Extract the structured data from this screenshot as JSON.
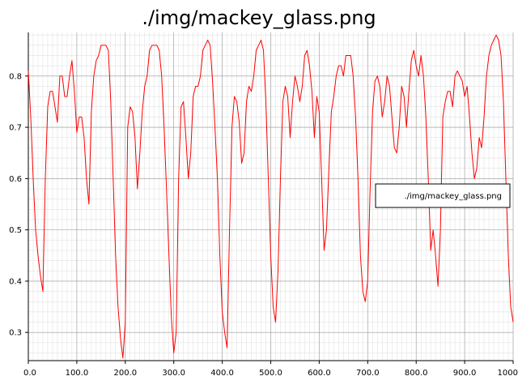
{
  "chart_data": {
    "type": "line",
    "title": "./img/mackey_glass.png",
    "xlabel": "",
    "ylabel": "",
    "xlim": [
      0,
      1000
    ],
    "ylim": [
      0.245,
      0.885
    ],
    "x_ticks": [
      0,
      100,
      200,
      300,
      400,
      500,
      600,
      700,
      800,
      900,
      1000
    ],
    "x_tick_labels": [
      "0.0",
      "100.0",
      "200.0",
      "300.0",
      "400.0",
      "500.0",
      "600.0",
      "700.0",
      "800.0",
      "900.0",
      "1000"
    ],
    "y_ticks": [
      0.3,
      0.4,
      0.5,
      0.6,
      0.7,
      0.8
    ],
    "y_tick_labels": [
      "0.3",
      "0.4",
      "0.5",
      "0.6",
      "0.7",
      "0.8"
    ],
    "grid": true,
    "legend_position": "center-right",
    "series": [
      {
        "name": "./img/mackey_glass.png",
        "color": "#ff0000",
        "points": [
          [
            0,
            0.81
          ],
          [
            5,
            0.72
          ],
          [
            10,
            0.6
          ],
          [
            15,
            0.5
          ],
          [
            20,
            0.45
          ],
          [
            25,
            0.41
          ],
          [
            30,
            0.38
          ],
          [
            35,
            0.6
          ],
          [
            40,
            0.74
          ],
          [
            45,
            0.77
          ],
          [
            50,
            0.77
          ],
          [
            55,
            0.74
          ],
          [
            60,
            0.71
          ],
          [
            65,
            0.8
          ],
          [
            70,
            0.8
          ],
          [
            75,
            0.76
          ],
          [
            80,
            0.76
          ],
          [
            85,
            0.8
          ],
          [
            90,
            0.83
          ],
          [
            95,
            0.77
          ],
          [
            100,
            0.69
          ],
          [
            105,
            0.72
          ],
          [
            110,
            0.72
          ],
          [
            115,
            0.68
          ],
          [
            120,
            0.6
          ],
          [
            125,
            0.55
          ],
          [
            130,
            0.73
          ],
          [
            135,
            0.8
          ],
          [
            140,
            0.83
          ],
          [
            145,
            0.84
          ],
          [
            150,
            0.86
          ],
          [
            155,
            0.86
          ],
          [
            160,
            0.86
          ],
          [
            165,
            0.85
          ],
          [
            170,
            0.75
          ],
          [
            175,
            0.6
          ],
          [
            180,
            0.45
          ],
          [
            185,
            0.35
          ],
          [
            190,
            0.29
          ],
          [
            195,
            0.25
          ],
          [
            200,
            0.32
          ],
          [
            205,
            0.7
          ],
          [
            210,
            0.74
          ],
          [
            215,
            0.73
          ],
          [
            220,
            0.68
          ],
          [
            225,
            0.58
          ],
          [
            230,
            0.65
          ],
          [
            235,
            0.73
          ],
          [
            240,
            0.78
          ],
          [
            245,
            0.8
          ],
          [
            250,
            0.85
          ],
          [
            255,
            0.86
          ],
          [
            260,
            0.86
          ],
          [
            265,
            0.86
          ],
          [
            270,
            0.85
          ],
          [
            275,
            0.8
          ],
          [
            280,
            0.7
          ],
          [
            285,
            0.58
          ],
          [
            290,
            0.45
          ],
          [
            295,
            0.33
          ],
          [
            300,
            0.26
          ],
          [
            305,
            0.3
          ],
          [
            310,
            0.6
          ],
          [
            315,
            0.74
          ],
          [
            320,
            0.75
          ],
          [
            325,
            0.68
          ],
          [
            330,
            0.6
          ],
          [
            335,
            0.65
          ],
          [
            340,
            0.76
          ],
          [
            345,
            0.78
          ],
          [
            350,
            0.78
          ],
          [
            355,
            0.8
          ],
          [
            360,
            0.85
          ],
          [
            365,
            0.86
          ],
          [
            370,
            0.87
          ],
          [
            375,
            0.86
          ],
          [
            380,
            0.79
          ],
          [
            385,
            0.7
          ],
          [
            390,
            0.6
          ],
          [
            395,
            0.45
          ],
          [
            400,
            0.34
          ],
          [
            405,
            0.3
          ],
          [
            410,
            0.27
          ],
          [
            415,
            0.5
          ],
          [
            420,
            0.7
          ],
          [
            425,
            0.76
          ],
          [
            430,
            0.75
          ],
          [
            435,
            0.71
          ],
          [
            440,
            0.63
          ],
          [
            445,
            0.65
          ],
          [
            450,
            0.75
          ],
          [
            455,
            0.78
          ],
          [
            460,
            0.77
          ],
          [
            465,
            0.8
          ],
          [
            470,
            0.85
          ],
          [
            475,
            0.86
          ],
          [
            480,
            0.87
          ],
          [
            485,
            0.85
          ],
          [
            490,
            0.75
          ],
          [
            495,
            0.6
          ],
          [
            500,
            0.45
          ],
          [
            505,
            0.35
          ],
          [
            510,
            0.32
          ],
          [
            515,
            0.42
          ],
          [
            520,
            0.6
          ],
          [
            525,
            0.75
          ],
          [
            530,
            0.78
          ],
          [
            535,
            0.76
          ],
          [
            540,
            0.68
          ],
          [
            545,
            0.75
          ],
          [
            550,
            0.8
          ],
          [
            555,
            0.78
          ],
          [
            560,
            0.75
          ],
          [
            565,
            0.78
          ],
          [
            570,
            0.84
          ],
          [
            575,
            0.85
          ],
          [
            580,
            0.82
          ],
          [
            585,
            0.77
          ],
          [
            590,
            0.68
          ],
          [
            595,
            0.76
          ],
          [
            600,
            0.73
          ],
          [
            605,
            0.6
          ],
          [
            610,
            0.46
          ],
          [
            615,
            0.5
          ],
          [
            620,
            0.62
          ],
          [
            625,
            0.73
          ],
          [
            630,
            0.76
          ],
          [
            635,
            0.8
          ],
          [
            640,
            0.82
          ],
          [
            645,
            0.82
          ],
          [
            650,
            0.8
          ],
          [
            655,
            0.84
          ],
          [
            660,
            0.84
          ],
          [
            665,
            0.84
          ],
          [
            670,
            0.8
          ],
          [
            675,
            0.72
          ],
          [
            680,
            0.6
          ],
          [
            685,
            0.45
          ],
          [
            690,
            0.38
          ],
          [
            695,
            0.36
          ],
          [
            700,
            0.4
          ],
          [
            705,
            0.58
          ],
          [
            710,
            0.73
          ],
          [
            715,
            0.79
          ],
          [
            720,
            0.8
          ],
          [
            725,
            0.78
          ],
          [
            730,
            0.72
          ],
          [
            735,
            0.75
          ],
          [
            740,
            0.8
          ],
          [
            745,
            0.78
          ],
          [
            750,
            0.72
          ],
          [
            755,
            0.66
          ],
          [
            760,
            0.65
          ],
          [
            765,
            0.7
          ],
          [
            770,
            0.78
          ],
          [
            775,
            0.76
          ],
          [
            780,
            0.7
          ],
          [
            785,
            0.77
          ],
          [
            790,
            0.83
          ],
          [
            795,
            0.85
          ],
          [
            800,
            0.82
          ],
          [
            805,
            0.8
          ],
          [
            810,
            0.84
          ],
          [
            815,
            0.8
          ],
          [
            820,
            0.72
          ],
          [
            825,
            0.6
          ],
          [
            830,
            0.46
          ],
          [
            835,
            0.5
          ],
          [
            840,
            0.45
          ],
          [
            845,
            0.39
          ],
          [
            850,
            0.5
          ],
          [
            855,
            0.72
          ],
          [
            860,
            0.75
          ],
          [
            865,
            0.77
          ],
          [
            870,
            0.77
          ],
          [
            875,
            0.74
          ],
          [
            880,
            0.8
          ],
          [
            885,
            0.81
          ],
          [
            890,
            0.8
          ],
          [
            895,
            0.79
          ],
          [
            900,
            0.76
          ],
          [
            905,
            0.78
          ],
          [
            910,
            0.72
          ],
          [
            915,
            0.65
          ],
          [
            920,
            0.6
          ],
          [
            925,
            0.62
          ],
          [
            930,
            0.68
          ],
          [
            935,
            0.66
          ],
          [
            940,
            0.72
          ],
          [
            945,
            0.8
          ],
          [
            950,
            0.84
          ],
          [
            955,
            0.86
          ],
          [
            960,
            0.87
          ],
          [
            965,
            0.88
          ],
          [
            970,
            0.87
          ],
          [
            975,
            0.84
          ],
          [
            980,
            0.75
          ],
          [
            985,
            0.6
          ],
          [
            990,
            0.45
          ],
          [
            995,
            0.35
          ],
          [
            1000,
            0.32
          ]
        ]
      }
    ]
  }
}
